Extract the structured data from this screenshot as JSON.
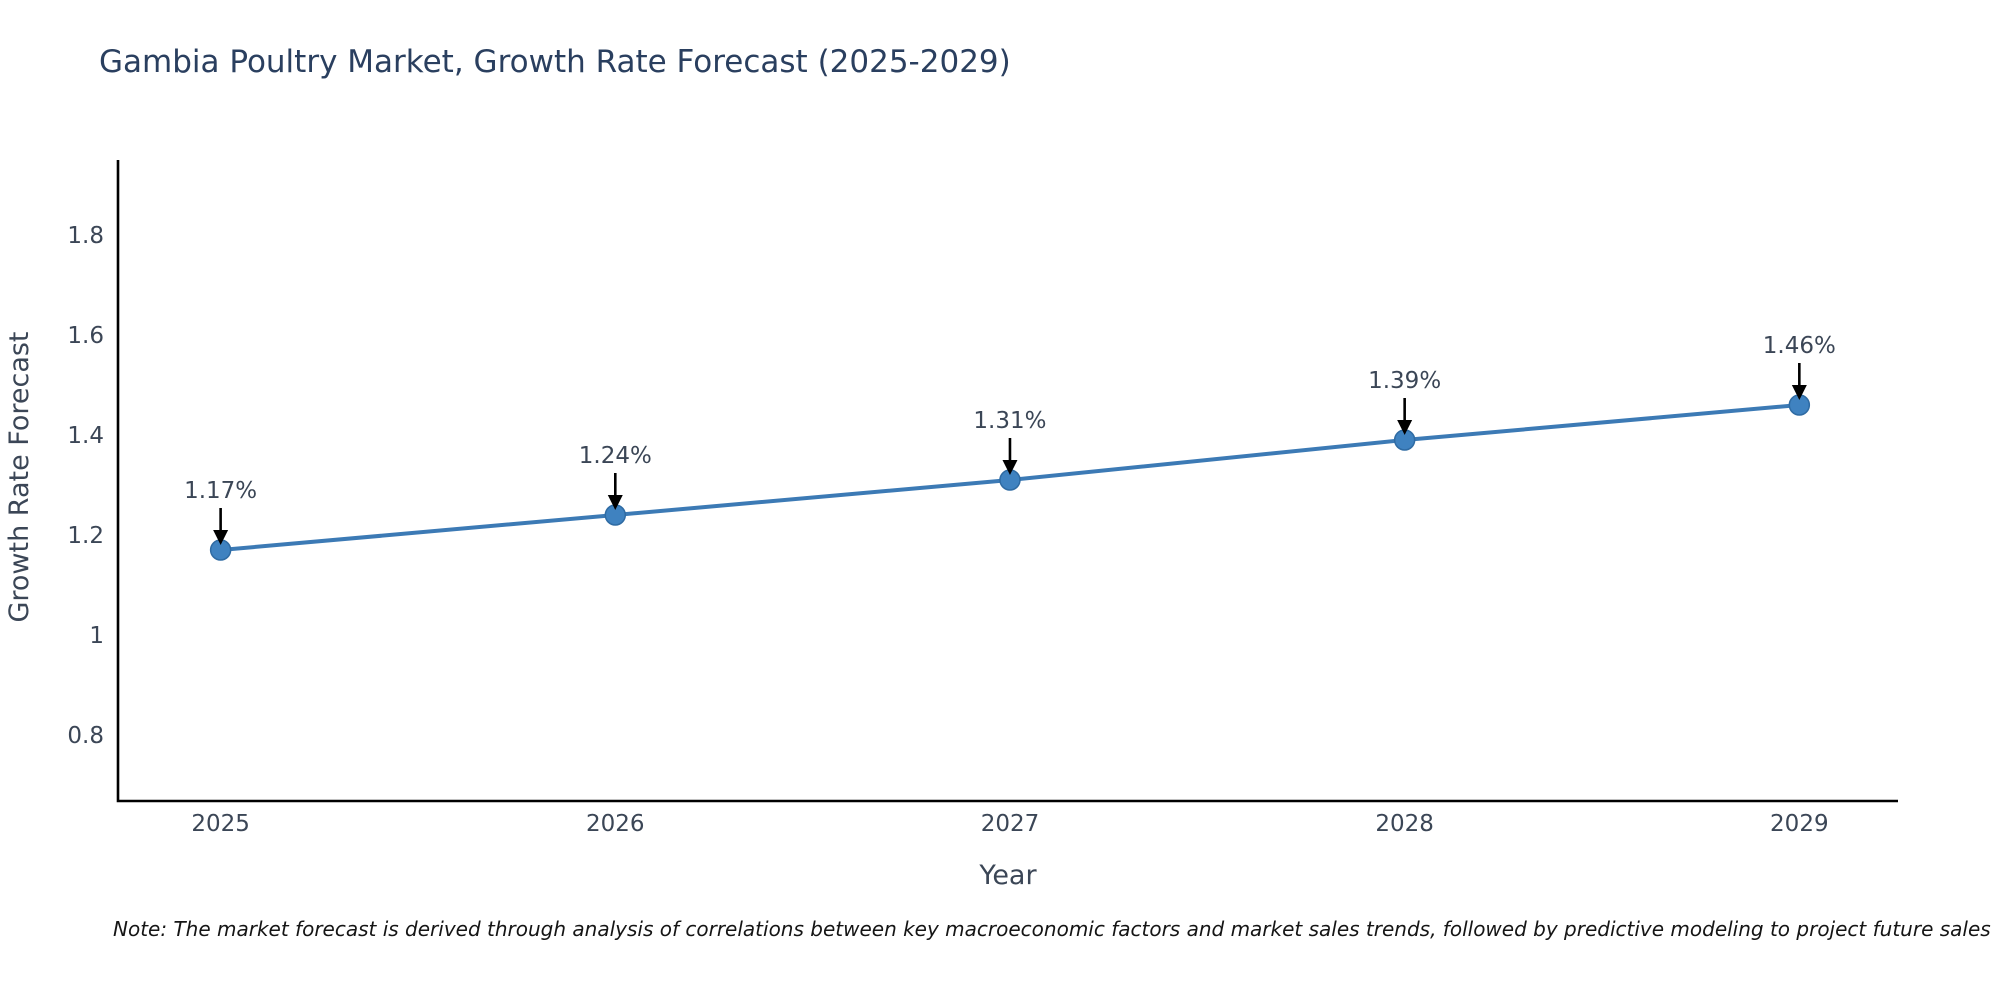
{
  "title": "Gambia Poultry Market, Growth Rate Forecast (2025-2029)",
  "note": "Note: The market forecast is derived through analysis of correlations between key macroeconomic factors and market sales trends, followed by predictive modeling to project future sales",
  "chart_data": {
    "type": "line",
    "x": [
      2025,
      2026,
      2027,
      2028,
      2029
    ],
    "x_tick_labels": [
      "2025",
      "2026",
      "2027",
      "2028",
      "2029"
    ],
    "series": [
      {
        "name": "Growth Rate Forecast",
        "values": [
          1.17,
          1.24,
          1.31,
          1.39,
          1.46
        ]
      }
    ],
    "point_labels": [
      "1.17%",
      "1.24%",
      "1.31%",
      "1.39%",
      "1.46%"
    ],
    "title": "Gambia Poultry Market, Growth Rate Forecast (2025-2029)",
    "xlabel": "Year",
    "ylabel": "Growth Rate Forecast",
    "yticks": [
      0.8,
      1.0,
      1.2,
      1.4,
      1.6,
      1.8
    ],
    "ytick_labels": [
      "0.8",
      "1",
      "1.2",
      "1.4",
      "1.6",
      "1.8"
    ],
    "ylim": [
      0.668,
      1.95
    ],
    "xlim": [
      2024.74,
      2029.25
    ],
    "grid": false,
    "legend_position": "none",
    "annotations_have_arrows": true,
    "colors": {
      "line": "#3c7ab5",
      "marker_fill": "#3f82c0",
      "marker_stroke": "#2f6ba3",
      "axis": "#000000",
      "arrow": "#000000",
      "tick_text": "#3b4656",
      "title_text": "#2a3f5f"
    }
  }
}
